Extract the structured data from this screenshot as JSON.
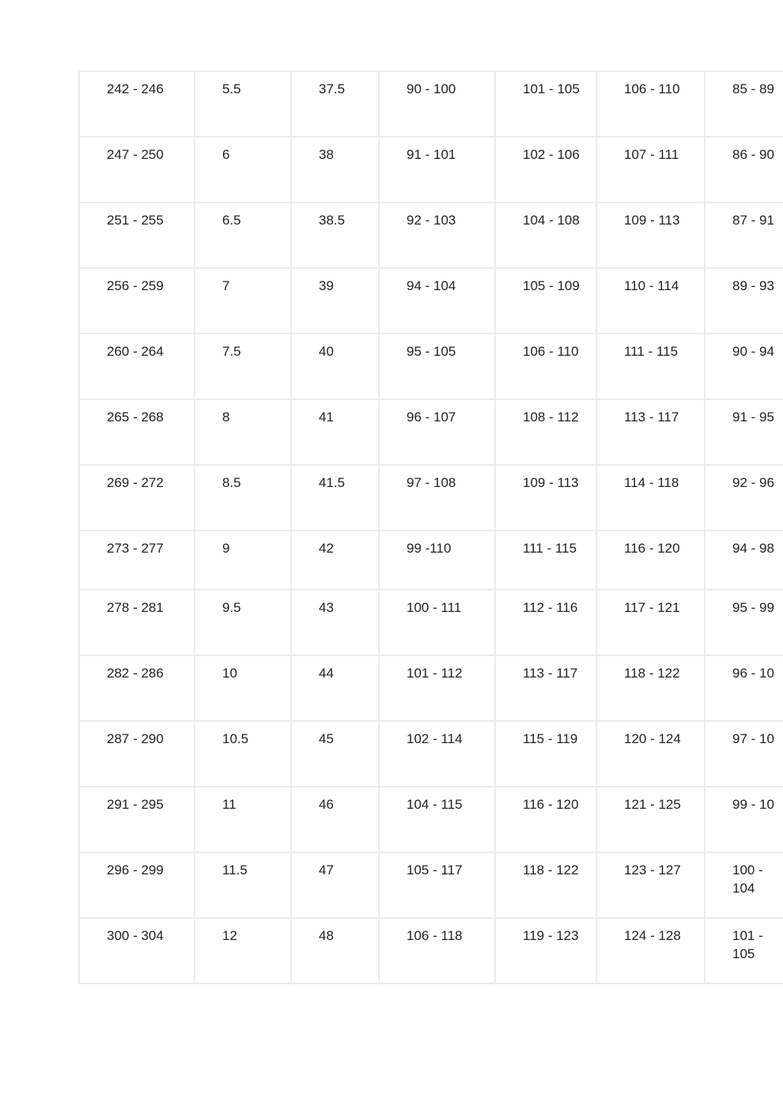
{
  "table": {
    "rows": [
      [
        "242 - 246",
        "5.5",
        "37.5",
        "90 - 100",
        "101 - 105",
        "106 - 110",
        "85 - 89"
      ],
      [
        "247 - 250",
        "6",
        "38",
        "91 - 101",
        "102 - 106",
        "107 - 111",
        "86 - 90"
      ],
      [
        "251 - 255",
        "6.5",
        "38.5",
        "92 - 103",
        "104 - 108",
        "109 - 113",
        "87 - 91"
      ],
      [
        "256 - 259",
        "7",
        "39",
        "94 - 104",
        "105 - 109",
        "110 - 114",
        "89 - 93"
      ],
      [
        "260 - 264",
        "7.5",
        "40",
        "95 - 105",
        "106 - 110",
        "111 - 115",
        "90 - 94"
      ],
      [
        "265 - 268",
        "8",
        "41",
        "96 - 107",
        "108 - 112",
        "113 - 117",
        "91 - 95"
      ],
      [
        "269 - 272",
        "8.5",
        "41.5",
        "97 - 108",
        "109 - 113",
        "114 - 118",
        "92 - 96"
      ],
      [
        "273 - 277",
        "9",
        "42",
        "99 -110",
        "111 - 115",
        "116 - 120",
        "94 - 98"
      ],
      [
        "278 - 281",
        "9.5",
        "43",
        "100 - 111",
        "112 - 116",
        "117 - 121",
        "95 - 99"
      ],
      [
        "282 - 286",
        "10",
        "44",
        "101 - 112",
        "113 - 117",
        "118 - 122",
        "96 - 10"
      ],
      [
        "287 - 290",
        "10.5",
        "45",
        "102 - 114",
        "115 - 119",
        "120 - 124",
        "97 - 10"
      ],
      [
        "291 - 295",
        "11",
        "46",
        "104 - 115",
        "116 - 120",
        "121 - 125",
        "99 - 10"
      ],
      [
        "296 - 299",
        "11.5",
        "47",
        "105 - 117",
        "118 - 122",
        "123 - 127",
        "100 - 104"
      ],
      [
        "300 - 304",
        "12",
        "48",
        "106 - 118",
        "119 - 123",
        "124 - 128",
        "101 - 105"
      ]
    ]
  }
}
